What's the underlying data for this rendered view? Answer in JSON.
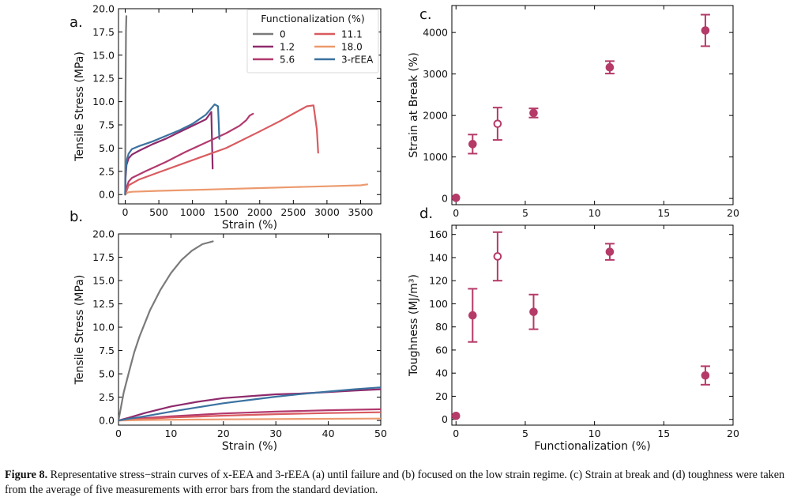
{
  "charts": [
    {
      "id": "a",
      "panel_label": "a.",
      "type": "line",
      "xlabel": "Strain (%)",
      "ylabel": "Tensile Stress (MPa)",
      "xlim": [
        -100,
        3800
      ],
      "ylim": [
        -1,
        20
      ],
      "xticks": [
        0,
        500,
        1000,
        1500,
        2000,
        2500,
        3000,
        3500
      ],
      "yticks": [
        0.0,
        2.5,
        5.0,
        7.5,
        10.0,
        12.5,
        15.0,
        17.5,
        20.0
      ],
      "ytick_labels": [
        "0.0",
        "2.5",
        "5.0",
        "7.5",
        "10.0",
        "12.5",
        "15.0",
        "17.5",
        "20.0"
      ],
      "legend": {
        "title": "Functionalization (%)",
        "placement": "top-right",
        "entries": [
          "0",
          "1.2",
          "5.6",
          "11.1",
          "18.0",
          "3-rEEA"
        ]
      }
    },
    {
      "id": "b",
      "panel_label": "b.",
      "type": "line",
      "xlabel": "Strain (%)",
      "ylabel": "Tensile Stress (MPa)",
      "xlim": [
        0,
        50
      ],
      "ylim": [
        -0.5,
        20
      ],
      "xticks": [
        0,
        10,
        20,
        30,
        40,
        50
      ],
      "yticks": [
        0.0,
        2.5,
        5.0,
        7.5,
        10.0,
        12.5,
        15.0,
        17.5,
        20.0
      ],
      "ytick_labels": [
        "0.0",
        "2.5",
        "5.0",
        "7.5",
        "10.0",
        "12.5",
        "15.0",
        "17.5",
        "20.0"
      ]
    },
    {
      "id": "c",
      "panel_label": "c.",
      "type": "scatter",
      "xlabel": "",
      "ylabel": "Strain at Break (%)",
      "xlim": [
        -0.3,
        20
      ],
      "ylim": [
        -150,
        4650
      ],
      "xticks": [
        0,
        5,
        10,
        15,
        20
      ],
      "yticks": [
        0,
        1000,
        2000,
        3000,
        4000
      ],
      "ytick_labels": [
        "0",
        "1000",
        "2000",
        "3000",
        "4000"
      ],
      "points": [
        {
          "x": 0,
          "y": 15,
          "err": 0,
          "open": false
        },
        {
          "x": 1.2,
          "y": 1310,
          "err": 230,
          "open": false
        },
        {
          "x": 3.0,
          "y": 1800,
          "err": 390,
          "open": true
        },
        {
          "x": 5.6,
          "y": 2060,
          "err": 110,
          "open": false
        },
        {
          "x": 11.1,
          "y": 3160,
          "err": 150,
          "open": false
        },
        {
          "x": 18.0,
          "y": 4050,
          "err": 380,
          "open": false
        }
      ]
    },
    {
      "id": "d",
      "panel_label": "d.",
      "type": "scatter",
      "xlabel": "Functionalization (%)",
      "ylabel": "Toughness (MJ/m³)",
      "xlim": [
        -0.3,
        20
      ],
      "ylim": [
        -5,
        168
      ],
      "xticks": [
        0,
        5,
        10,
        15,
        20
      ],
      "yticks": [
        0,
        20,
        40,
        60,
        80,
        100,
        120,
        140,
        160
      ],
      "ytick_labels": [
        "0",
        "20",
        "40",
        "60",
        "80",
        "100",
        "120",
        "140",
        "160"
      ],
      "points": [
        {
          "x": 0,
          "y": 3,
          "err": 0,
          "open": false
        },
        {
          "x": 1.2,
          "y": 90,
          "err": 23,
          "open": false
        },
        {
          "x": 3.0,
          "y": 141,
          "err": 21,
          "open": true
        },
        {
          "x": 5.6,
          "y": 93,
          "err": 15,
          "open": false
        },
        {
          "x": 11.1,
          "y": 145,
          "err": 7,
          "open": false
        },
        {
          "x": 18.0,
          "y": 38,
          "err": 8,
          "open": false
        }
      ]
    }
  ],
  "chart_data": [
    {
      "panel": "a",
      "type": "line",
      "xlabel": "Strain (%)",
      "ylabel": "Tensile Stress (MPa)",
      "series": [
        {
          "name": "0",
          "color": "#7a7a7a",
          "x": [
            0,
            2,
            5,
            8,
            12,
            15,
            18
          ],
          "y": [
            0,
            5,
            10.5,
            14.3,
            17.6,
            18.6,
            19.2
          ]
        },
        {
          "name": "1.2",
          "color": "#8e2a6b",
          "x": [
            0,
            5,
            20,
            50,
            100,
            200,
            400,
            600,
            800,
            1000,
            1200,
            1280,
            1300
          ],
          "y": [
            0,
            1.7,
            3.2,
            3.9,
            4.3,
            4.7,
            5.4,
            6.0,
            6.7,
            7.4,
            8.1,
            8.9,
            2.8
          ]
        },
        {
          "name": "5.6",
          "color": "#b23a6e",
          "x": [
            0,
            20,
            50,
            100,
            300,
            600,
            900,
            1200,
            1500,
            1700,
            1800,
            1850,
            1900
          ],
          "y": [
            0,
            0.7,
            1.4,
            1.8,
            2.5,
            3.5,
            4.6,
            5.6,
            6.6,
            7.4,
            8.0,
            8.5,
            8.7
          ]
        },
        {
          "name": "11.1",
          "color": "#d95b60",
          "x": [
            0,
            50,
            200,
            500,
            1000,
            1500,
            2000,
            2300,
            2500,
            2700,
            2800,
            2850,
            2870
          ],
          "y": [
            0,
            1.0,
            1.6,
            2.4,
            3.7,
            5.0,
            6.8,
            7.9,
            8.7,
            9.5,
            9.6,
            7.0,
            4.5
          ]
        },
        {
          "name": "18.0",
          "color": "#ec9a6e",
          "x": [
            0,
            20,
            50,
            100,
            500,
            1000,
            1500,
            2000,
            2500,
            3000,
            3500,
            3600
          ],
          "y": [
            0,
            0.15,
            0.25,
            0.3,
            0.4,
            0.5,
            0.6,
            0.7,
            0.8,
            0.9,
            1.0,
            1.1
          ]
        },
        {
          "name": "3-rEEA",
          "color": "#3b72a0",
          "x": [
            0,
            5,
            20,
            50,
            100,
            200,
            400,
            600,
            800,
            1000,
            1200,
            1330,
            1380,
            1400
          ],
          "y": [
            0,
            2.0,
            3.6,
            4.4,
            4.9,
            5.2,
            5.7,
            6.3,
            6.9,
            7.6,
            8.6,
            9.7,
            9.5,
            6.0
          ]
        }
      ]
    },
    {
      "panel": "b",
      "type": "line",
      "xlabel": "Strain (%)",
      "ylabel": "Tensile Stress (MPa)",
      "series": [
        {
          "name": "0",
          "color": "#7a7a7a",
          "x": [
            0,
            1,
            2,
            3,
            4,
            6,
            8,
            10,
            12,
            14,
            16,
            18
          ],
          "y": [
            0,
            3.0,
            5.2,
            7.3,
            9.0,
            11.8,
            14.0,
            15.8,
            17.2,
            18.2,
            18.9,
            19.2
          ]
        },
        {
          "name": "1.2",
          "color": "#8e2a6b",
          "x": [
            0,
            2,
            5,
            10,
            15,
            20,
            25,
            30,
            35,
            40,
            45,
            50
          ],
          "y": [
            0,
            0.3,
            0.8,
            1.5,
            2.0,
            2.4,
            2.6,
            2.8,
            2.9,
            3.05,
            3.2,
            3.35
          ]
        },
        {
          "name": "5.6",
          "color": "#b23a6e",
          "x": [
            0,
            5,
            10,
            20,
            30,
            40,
            50
          ],
          "y": [
            0,
            0.25,
            0.45,
            0.75,
            0.95,
            1.1,
            1.2
          ]
        },
        {
          "name": "11.1",
          "color": "#d95b60",
          "x": [
            0,
            5,
            10,
            20,
            30,
            40,
            50
          ],
          "y": [
            0,
            0.18,
            0.32,
            0.52,
            0.68,
            0.8,
            0.88
          ]
        },
        {
          "name": "18.0",
          "color": "#ec9a6e",
          "x": [
            0,
            5,
            10,
            20,
            30,
            40,
            50
          ],
          "y": [
            0,
            0.05,
            0.08,
            0.12,
            0.15,
            0.18,
            0.2
          ]
        },
        {
          "name": "3-rEEA",
          "color": "#3b72a0",
          "x": [
            0,
            5,
            10,
            15,
            20,
            25,
            30,
            35,
            40,
            45,
            50
          ],
          "y": [
            0,
            0.45,
            0.95,
            1.4,
            1.85,
            2.2,
            2.55,
            2.85,
            3.1,
            3.35,
            3.55
          ]
        }
      ]
    },
    {
      "panel": "c",
      "type": "scatter",
      "ylabel": "Strain at Break (%)",
      "x": [
        0,
        1.2,
        3.0,
        5.6,
        11.1,
        18.0
      ],
      "y": [
        15,
        1310,
        1800,
        2060,
        3160,
        4050
      ],
      "yerr": [
        0,
        230,
        390,
        110,
        150,
        380
      ]
    },
    {
      "panel": "d",
      "type": "scatter",
      "xlabel": "Functionalization (%)",
      "ylabel": "Toughness (MJ/m³)",
      "x": [
        0,
        1.2,
        3.0,
        5.6,
        11.1,
        18.0
      ],
      "y": [
        3,
        90,
        141,
        93,
        145,
        38
      ],
      "yerr": [
        0,
        23,
        21,
        15,
        7,
        8
      ]
    }
  ],
  "caption": {
    "label": "Figure 8.",
    "text": " Representative stress−strain curves of x-EEA and 3-rEEA (a) until failure and (b) focused on the low strain regime. (c) Strain at break and (d) toughness were taken from the average of five measurements with error bars from the standard deviation."
  },
  "colors": {
    "marker": "#b53a68",
    "axis": "#000000"
  }
}
